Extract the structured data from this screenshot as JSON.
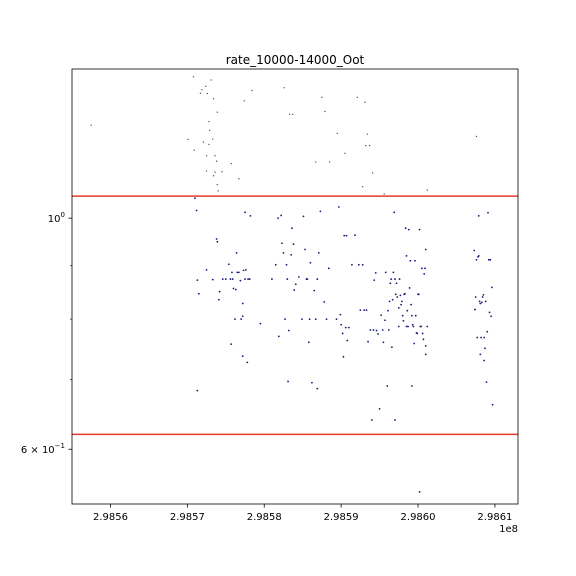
{
  "chart_data": {
    "type": "scatter",
    "title": "rate_10000-14000_Oot",
    "xlabel": "",
    "ylabel": "",
    "x_offset_label": "1e8",
    "xlim": [
      2.98555,
      2.98613
    ],
    "ylim": [
      0.5316,
      1.3905
    ],
    "y_scale": "log",
    "grid": false,
    "legend": "none",
    "x_ticks": [
      {
        "value": 2.9856,
        "label": "2.9856"
      },
      {
        "value": 2.9857,
        "label": "2.9857"
      },
      {
        "value": 2.9858,
        "label": "2.9858"
      },
      {
        "value": 2.9859,
        "label": "2.9859"
      },
      {
        "value": 2.986,
        "label": "2.9860"
      },
      {
        "value": 2.9861,
        "label": "2.9861"
      }
    ],
    "y_ticks": [
      {
        "value": 1.0,
        "label": "10",
        "sup": "0"
      },
      {
        "value": 0.6,
        "label": "6 × 10",
        "sup": "−1"
      }
    ],
    "hlines": [
      {
        "y": 1.05,
        "color": "#e8392c"
      },
      {
        "y": 0.62,
        "color": "#e8392c"
      }
    ],
    "marker_colors": {
      "small": "#555555",
      "dense": "#1a1a7a"
    },
    "series": [
      {
        "marker": "small",
        "points": [
          [
            2.985575,
            1.228
          ],
          [
            2.985701,
            1.19
          ],
          [
            2.985708,
            1.367
          ],
          [
            2.985709,
            1.162
          ],
          [
            2.985717,
            1.318
          ],
          [
            2.985719,
            1.328
          ],
          [
            2.985721,
            1.183
          ],
          [
            2.985724,
            1.338
          ],
          [
            2.985725,
            1.148
          ],
          [
            2.985725,
            1.11
          ],
          [
            2.985726,
            1.317
          ],
          [
            2.985728,
            1.177
          ],
          [
            2.985728,
            1.238
          ],
          [
            2.985729,
            1.214
          ],
          [
            2.985731,
            1.357
          ],
          [
            2.985733,
            1.191
          ],
          [
            2.985734,
            1.302
          ],
          [
            2.985734,
            1.098
          ],
          [
            2.985736,
            1.148
          ],
          [
            2.985736,
            1.107
          ],
          [
            2.985738,
            1.134
          ],
          [
            2.985739,
            1.264
          ],
          [
            2.985739,
            1.077
          ],
          [
            2.98574,
            1.062
          ],
          [
            2.985745,
            1.108
          ],
          [
            2.985757,
            1.128
          ],
          [
            2.985767,
            1.091
          ],
          [
            2.985774,
            1.296
          ],
          [
            2.985784,
            1.326
          ],
          [
            2.985826,
            1.334
          ],
          [
            2.985833,
            1.258
          ],
          [
            2.985837,
            1.258
          ],
          [
            2.985867,
            1.132
          ],
          [
            2.985875,
            1.306
          ],
          [
            2.985879,
            1.266
          ],
          [
            2.985885,
            1.132
          ],
          [
            2.985895,
            1.206
          ],
          [
            2.985905,
            1.154
          ],
          [
            2.985921,
            1.306
          ],
          [
            2.985928,
            1.072
          ],
          [
            2.985931,
            1.292
          ],
          [
            2.985932,
            1.174
          ],
          [
            2.985934,
            1.204
          ],
          [
            2.985937,
            1.174
          ],
          [
            2.985941,
            1.105
          ],
          [
            2.985956,
            1.055
          ],
          [
            2.986012,
            1.064
          ],
          [
            2.986076,
            1.198
          ]
        ]
      },
      {
        "marker": "dense",
        "points": [
          [
            2.98571,
            1.045
          ],
          [
            2.985712,
            1.017
          ],
          [
            2.985713,
            0.872
          ],
          [
            2.985715,
            0.846
          ],
          [
            2.985713,
            0.683
          ],
          [
            2.985725,
            0.892
          ],
          [
            2.985733,
            0.873
          ],
          [
            2.985738,
            0.955
          ],
          [
            2.985739,
            0.949
          ],
          [
            2.985741,
            0.835
          ],
          [
            2.985742,
            0.85
          ],
          [
            2.985746,
            0.874
          ],
          [
            2.98575,
            0.874
          ],
          [
            2.985754,
            0.903
          ],
          [
            2.985756,
            0.874
          ],
          [
            2.985757,
            0.757
          ],
          [
            2.985758,
            0.887
          ],
          [
            2.985759,
            0.874
          ],
          [
            2.98576,
            0.856
          ],
          [
            2.985762,
            0.8
          ],
          [
            2.985763,
            0.854
          ],
          [
            2.985764,
            0.926
          ],
          [
            2.985765,
            0.887
          ],
          [
            2.985767,
            0.887
          ],
          [
            2.985769,
            0.871
          ],
          [
            2.98577,
            0.8
          ],
          [
            2.985772,
            0.828
          ],
          [
            2.985772,
            0.805
          ],
          [
            2.985773,
            0.891
          ],
          [
            2.985775,
            0.874
          ],
          [
            2.985775,
            1.013
          ],
          [
            2.985772,
            0.737
          ],
          [
            2.985776,
            0.892
          ],
          [
            2.985778,
            0.727
          ],
          [
            2.985779,
            0.874
          ],
          [
            2.985781,
            0.874
          ],
          [
            2.985782,
            1.005
          ],
          [
            2.985795,
            0.792
          ],
          [
            2.98581,
            0.874
          ],
          [
            2.985815,
            0.902
          ],
          [
            2.985818,
            1.0
          ],
          [
            2.985819,
            0.77
          ],
          [
            2.985822,
            1.006
          ],
          [
            2.985823,
            0.946
          ],
          [
            2.985825,
            0.926
          ],
          [
            2.985827,
            0.8
          ],
          [
            2.985829,
            0.902
          ],
          [
            2.98583,
            0.874
          ],
          [
            2.985831,
            0.697
          ],
          [
            2.985832,
            0.78
          ],
          [
            2.985835,
            0.922
          ],
          [
            2.985836,
            0.978
          ],
          [
            2.985838,
            0.944
          ],
          [
            2.985839,
            0.853
          ],
          [
            2.985841,
            0.864
          ],
          [
            2.985845,
            0.878
          ],
          [
            2.985849,
            0.8
          ],
          [
            2.985851,
            1.004
          ],
          [
            2.985853,
            0.933
          ],
          [
            2.985855,
            0.874
          ],
          [
            2.985856,
            0.874
          ],
          [
            2.985858,
            0.76
          ],
          [
            2.985859,
            0.8
          ],
          [
            2.98586,
            0.906
          ],
          [
            2.985862,
            0.695
          ],
          [
            2.985865,
            0.852
          ],
          [
            2.985867,
            0.8
          ],
          [
            2.985869,
            0.874
          ],
          [
            2.985871,
            0.926
          ],
          [
            2.985873,
            1.015
          ],
          [
            2.985869,
            0.686
          ],
          [
            2.985878,
            0.831
          ],
          [
            2.985881,
            0.8
          ],
          [
            2.985884,
            0.895
          ],
          [
            2.985894,
            0.8
          ],
          [
            2.985897,
            1.025
          ],
          [
            2.985899,
            0.808
          ],
          [
            2.9859,
            0.79
          ],
          [
            2.985902,
            0.775
          ],
          [
            2.985903,
            0.736
          ],
          [
            2.985904,
            0.962
          ],
          [
            2.985906,
            0.785
          ],
          [
            2.985907,
            0.962
          ],
          [
            2.985908,
            0.763
          ],
          [
            2.98591,
            0.785
          ],
          [
            2.985914,
            0.902
          ],
          [
            2.985918,
            0.963
          ],
          [
            2.985923,
            0.902
          ],
          [
            2.985925,
            0.816
          ],
          [
            2.985928,
            0.902
          ],
          [
            2.98593,
            0.816
          ],
          [
            2.985933,
            0.816
          ],
          [
            2.985935,
            0.761
          ],
          [
            2.985938,
            0.781
          ],
          [
            2.98594,
            0.64
          ],
          [
            2.985942,
            0.781
          ],
          [
            2.985943,
            0.872
          ],
          [
            2.985945,
            0.886
          ],
          [
            2.985946,
            0.78
          ],
          [
            2.985948,
            0.774
          ],
          [
            2.98595,
            0.656
          ],
          [
            2.985952,
            0.807
          ],
          [
            2.985954,
            0.781
          ],
          [
            2.985955,
            0.76
          ],
          [
            2.985957,
            0.798
          ],
          [
            2.985958,
            0.887
          ],
          [
            2.98596,
            0.69
          ],
          [
            2.985961,
            0.815
          ],
          [
            2.985962,
            0.781
          ],
          [
            2.985963,
            0.832
          ],
          [
            2.985964,
            0.866
          ],
          [
            2.985965,
            0.874
          ],
          [
            2.985966,
            0.752
          ],
          [
            2.985967,
            0.835
          ],
          [
            2.985968,
            0.887
          ],
          [
            2.985969,
            1.013
          ],
          [
            2.98597,
            0.874
          ],
          [
            2.985971,
            0.845
          ],
          [
            2.98597,
            0.64
          ],
          [
            2.985972,
            0.866
          ],
          [
            2.985973,
            0.84
          ],
          [
            2.985975,
            0.787
          ],
          [
            2.985976,
            0.874
          ],
          [
            2.985977,
            0.843
          ],
          [
            2.985978,
            0.826
          ],
          [
            2.985979,
            0.832
          ],
          [
            2.98598,
            0.806
          ],
          [
            2.985981,
            0.797
          ],
          [
            2.985982,
            0.845
          ],
          [
            2.985983,
            0.846
          ],
          [
            2.985984,
            0.978
          ],
          [
            2.985985,
            0.787
          ],
          [
            2.985986,
            0.815
          ],
          [
            2.985987,
            0.787
          ],
          [
            2.985988,
            0.975
          ],
          [
            2.985989,
            0.857
          ],
          [
            2.98599,
            0.91
          ],
          [
            2.985991,
            0.826
          ],
          [
            2.985992,
            0.806
          ],
          [
            2.985993,
            0.79
          ],
          [
            2.985994,
            0.787
          ],
          [
            2.985995,
            0.758
          ],
          [
            2.985996,
            0.91
          ],
          [
            2.985997,
            0.806
          ],
          [
            2.985998,
            0.776
          ],
          [
            2.985999,
            0.775
          ],
          [
            2.986,
            0.845
          ],
          [
            2.986001,
            0.845
          ],
          [
            2.986002,
            0.975
          ],
          [
            2.986003,
            0.787
          ],
          [
            2.986004,
            0.787
          ],
          [
            2.986005,
            0.895
          ],
          [
            2.986006,
            0.775
          ],
          [
            2.986007,
            0.765
          ],
          [
            2.986008,
            0.884
          ],
          [
            2.986009,
            0.895
          ],
          [
            2.98601,
            0.933
          ],
          [
            2.986012,
            0.787
          ],
          [
            2.98601,
            0.754
          ],
          [
            2.986002,
            0.546
          ],
          [
            2.985975,
            0.82
          ],
          [
            2.985985,
            0.92
          ],
          [
            2.985992,
            0.69
          ],
          [
            2.98601,
            0.74
          ],
          [
            2.986073,
            0.931
          ],
          [
            2.986074,
            0.817
          ],
          [
            2.986075,
            0.84
          ],
          [
            2.986076,
            0.912
          ],
          [
            2.986077,
            0.768
          ],
          [
            2.986078,
            0.918
          ],
          [
            2.986079,
            1.005
          ],
          [
            2.98608,
            0.832
          ],
          [
            2.986081,
            0.828
          ],
          [
            2.986082,
            0.768
          ],
          [
            2.986083,
            0.83
          ],
          [
            2.986084,
            0.84
          ],
          [
            2.986085,
            0.844
          ],
          [
            2.986086,
            0.768
          ],
          [
            2.986087,
            0.75
          ],
          [
            2.986088,
            0.832
          ],
          [
            2.986089,
            0.696
          ],
          [
            2.98609,
            0.778
          ],
          [
            2.986091,
            1.012
          ],
          [
            2.986092,
            0.912
          ],
          [
            2.986093,
            0.812
          ],
          [
            2.986094,
            0.912
          ],
          [
            2.986095,
            0.805
          ],
          [
            2.986096,
            0.858
          ],
          [
            2.986097,
            0.662
          ],
          [
            2.986081,
            0.74
          ],
          [
            2.986086,
            0.73
          ],
          [
            2.986079,
            0.92
          ]
        ]
      }
    ]
  }
}
